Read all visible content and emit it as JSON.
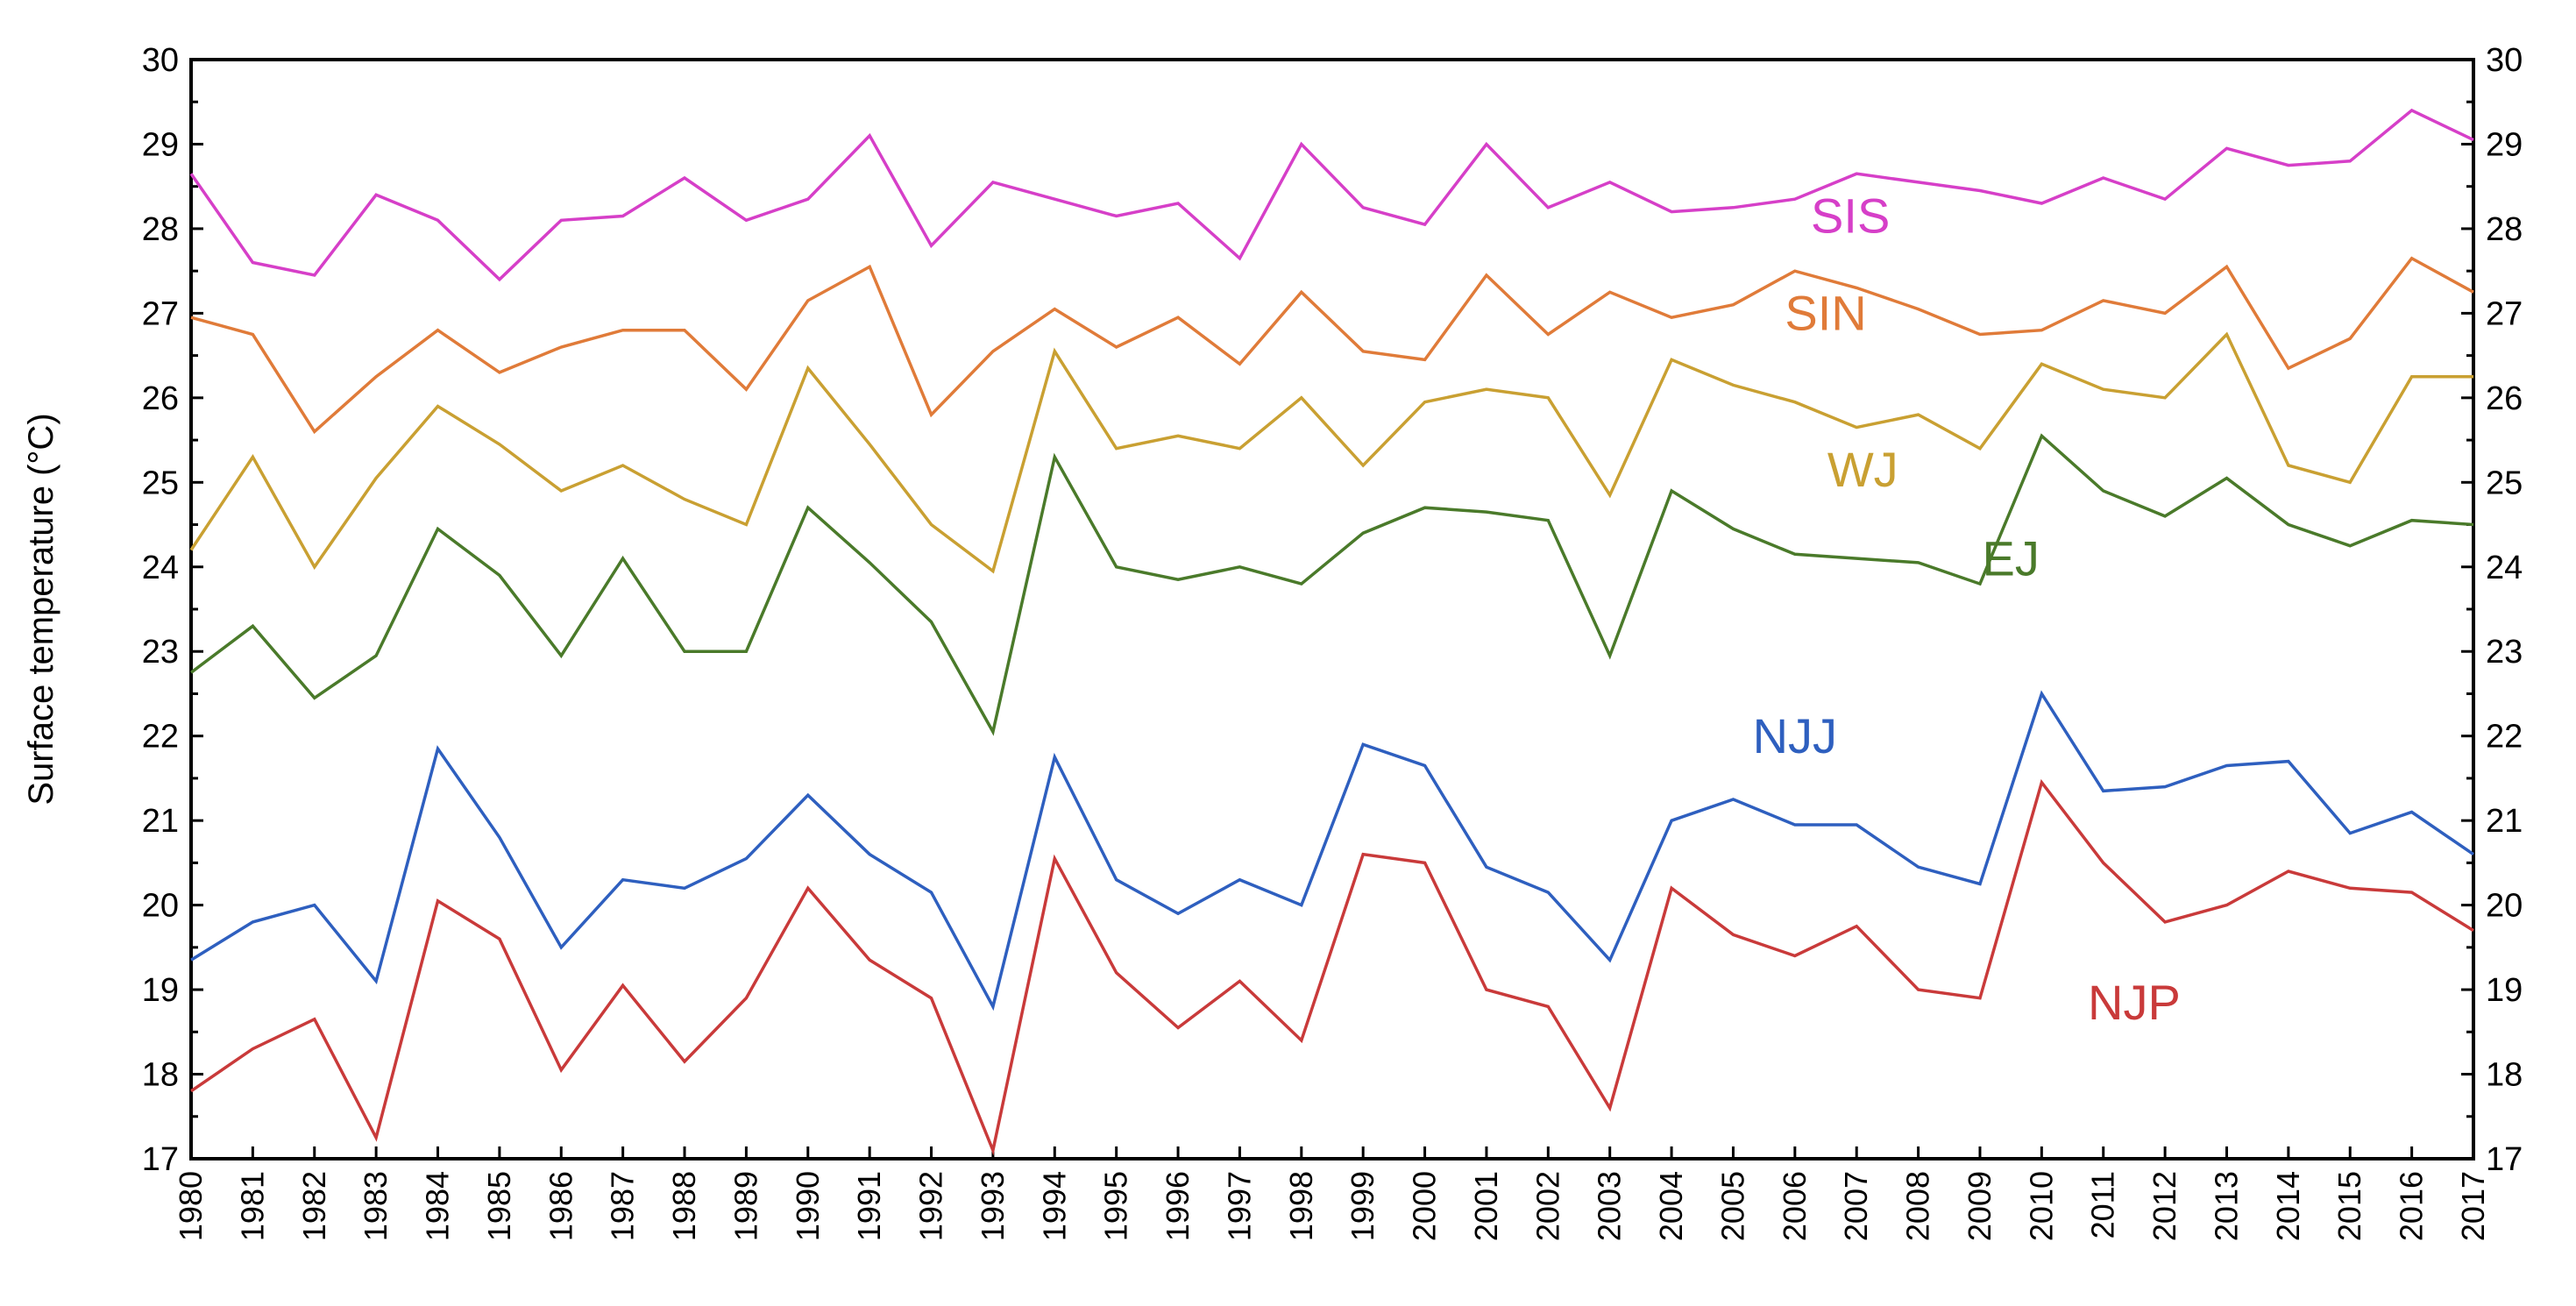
{
  "chart_data": {
    "type": "line",
    "title": "",
    "xlabel": "",
    "ylabel": "Surface temperature (°C)",
    "ylim": [
      17,
      30
    ],
    "yticks": [
      17,
      18,
      19,
      20,
      21,
      22,
      23,
      24,
      25,
      26,
      27,
      28,
      29,
      30
    ],
    "x": [
      1980,
      1981,
      1982,
      1983,
      1984,
      1985,
      1986,
      1987,
      1988,
      1989,
      1990,
      1991,
      1992,
      1993,
      1994,
      1995,
      1996,
      1997,
      1998,
      1999,
      2000,
      2001,
      2002,
      2003,
      2004,
      2005,
      2006,
      2007,
      2008,
      2009,
      2010,
      2011,
      2012,
      2013,
      2014,
      2015,
      2016,
      2017
    ],
    "grid": false,
    "right_axis": true,
    "series": [
      {
        "name": "SIS",
        "color": "#d63fc8",
        "label_at": [
          2006.9,
          27.95
        ],
        "values": [
          28.65,
          27.6,
          27.45,
          28.4,
          28.1,
          27.4,
          28.1,
          28.15,
          28.6,
          28.1,
          28.35,
          29.1,
          27.8,
          28.55,
          28.35,
          28.15,
          28.3,
          27.65,
          29.0,
          28.25,
          28.05,
          29.0,
          28.25,
          28.55,
          28.2,
          28.25,
          28.35,
          28.65,
          28.55,
          28.45,
          28.3,
          28.6,
          28.35,
          28.95,
          28.75,
          28.8,
          29.4,
          29.05
        ]
      },
      {
        "name": "SIN",
        "color": "#e07b39",
        "label_at": [
          2006.5,
          26.8
        ],
        "values": [
          26.95,
          26.75,
          25.6,
          26.25,
          26.8,
          26.3,
          26.6,
          26.8,
          26.8,
          26.1,
          27.15,
          27.55,
          25.8,
          26.55,
          27.05,
          26.6,
          26.95,
          26.4,
          27.25,
          26.55,
          26.45,
          27.45,
          26.75,
          27.25,
          26.95,
          27.1,
          27.5,
          27.3,
          27.05,
          26.75,
          26.8,
          27.15,
          27.0,
          27.55,
          26.35,
          26.7,
          27.65,
          27.25
        ]
      },
      {
        "name": "WJ",
        "color": "#c9a032",
        "label_at": [
          2007.1,
          24.95
        ],
        "values": [
          24.2,
          25.3,
          24.0,
          25.05,
          25.9,
          25.45,
          24.9,
          25.2,
          24.8,
          24.5,
          26.35,
          25.45,
          24.5,
          23.95,
          26.55,
          25.4,
          25.55,
          25.4,
          26.0,
          25.2,
          25.95,
          26.1,
          26.0,
          24.85,
          26.45,
          26.15,
          25.95,
          25.65,
          25.8,
          25.4,
          26.4,
          26.1,
          26.0,
          26.75,
          25.2,
          25.0,
          26.25,
          26.25
        ]
      },
      {
        "name": "EJ",
        "color": "#4a7a2a",
        "label_at": [
          2009.5,
          23.9
        ],
        "values": [
          22.75,
          23.3,
          22.45,
          22.95,
          24.45,
          23.9,
          22.95,
          24.1,
          23.0,
          23.0,
          24.7,
          24.05,
          23.35,
          22.05,
          25.3,
          24.0,
          23.85,
          24.0,
          23.8,
          24.4,
          24.7,
          24.65,
          24.55,
          22.95,
          24.9,
          24.45,
          24.15,
          24.1,
          24.05,
          23.8,
          25.55,
          24.9,
          24.6,
          25.05,
          24.5,
          24.25,
          24.55,
          24.5
        ]
      },
      {
        "name": "NJJ",
        "color": "#2e5fbf",
        "label_at": [
          2006.0,
          21.8
        ],
        "values": [
          19.35,
          19.8,
          20.0,
          19.1,
          21.85,
          20.8,
          19.5,
          20.3,
          20.2,
          20.55,
          21.3,
          20.6,
          20.15,
          18.8,
          21.75,
          20.3,
          19.9,
          20.3,
          20.0,
          21.9,
          21.65,
          20.45,
          20.15,
          19.35,
          21.0,
          21.25,
          20.95,
          20.95,
          20.45,
          20.25,
          22.5,
          21.35,
          21.4,
          21.65,
          21.7,
          20.85,
          21.1,
          20.6
        ]
      },
      {
        "name": "NJP",
        "color": "#c93a3a",
        "label_at": [
          2011.5,
          18.65
        ],
        "values": [
          17.8,
          18.3,
          18.65,
          17.25,
          20.05,
          19.6,
          18.05,
          19.05,
          18.15,
          18.9,
          20.2,
          19.35,
          18.9,
          17.1,
          20.55,
          19.2,
          18.55,
          19.1,
          18.4,
          20.6,
          20.5,
          19.0,
          18.8,
          17.6,
          20.2,
          19.65,
          19.4,
          19.75,
          19.0,
          18.9,
          21.45,
          20.5,
          19.8,
          20.0,
          20.4,
          20.2,
          20.15,
          19.7
        ]
      }
    ]
  }
}
